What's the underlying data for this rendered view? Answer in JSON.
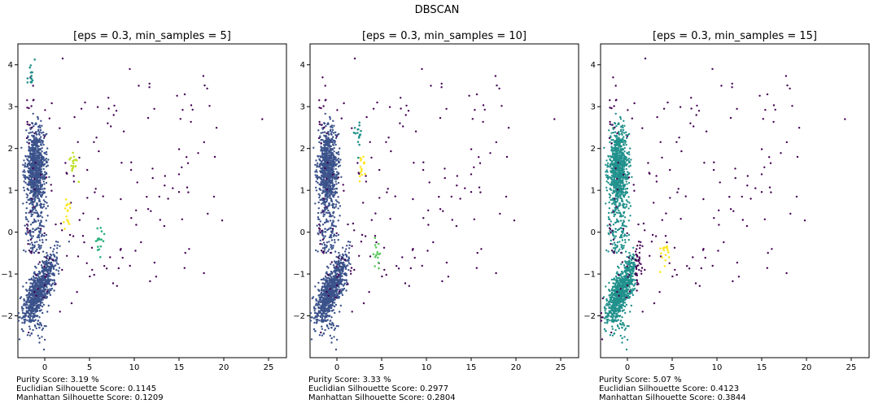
{
  "figure": {
    "suptitle": "DBSCAN"
  },
  "chart_data": [
    {
      "type": "scatter",
      "title": "[eps = 0.3, min_samples = 5]",
      "xlabel": "",
      "ylabel": "",
      "xlim": [
        -3,
        27
      ],
      "ylim": [
        -3.0,
        4.5
      ],
      "xticks": [
        0,
        5,
        10,
        15,
        20,
        25
      ],
      "yticks": [
        -2,
        -1,
        0,
        1,
        2,
        3,
        4
      ],
      "grid": false,
      "scores": [
        "Purity Score: 3.19 %",
        "Euclidian Silhouette Score: 0.1145",
        "Manhattan Silhouette Score: 0.1209"
      ],
      "clusters": [
        {
          "label": "noise",
          "color": "#440154",
          "shape": "scattered"
        },
        {
          "label": "main",
          "color": "#3b528b",
          "shape": "upper_lower_blobs"
        },
        {
          "label": "small-a",
          "color": "#21918c",
          "shape": "small",
          "center": [
            -1.5,
            3.7
          ]
        },
        {
          "label": "small-b",
          "color": "#2ab07f",
          "shape": "small",
          "center": [
            6.2,
            -0.3
          ]
        },
        {
          "label": "small-c",
          "color": "#bddf26",
          "shape": "small",
          "center": [
            3.2,
            1.6
          ]
        },
        {
          "label": "small-d",
          "color": "#fde725",
          "shape": "small",
          "center": [
            2.6,
            0.5
          ]
        }
      ]
    },
    {
      "type": "scatter",
      "title": "[eps = 0.3, min_samples = 10]",
      "xlabel": "",
      "ylabel": "",
      "xlim": [
        -3,
        27
      ],
      "ylim": [
        -3.0,
        4.5
      ],
      "xticks": [
        0,
        5,
        10,
        15,
        20,
        25
      ],
      "yticks": [
        -2,
        -1,
        0,
        1,
        2,
        3,
        4
      ],
      "grid": false,
      "scores": [
        "Purity Score: 3.33 %",
        "Euclidian Silhouette Score: 0.2977",
        "Manhattan Silhouette Score: 0.2804"
      ],
      "clusters": [
        {
          "label": "noise",
          "color": "#440154",
          "shape": "scattered"
        },
        {
          "label": "main",
          "color": "#3b528b",
          "shape": "upper_lower_blobs"
        },
        {
          "label": "small-a",
          "color": "#21918c",
          "shape": "small",
          "center": [
            2.5,
            2.3
          ]
        },
        {
          "label": "small-b",
          "color": "#5ec962",
          "shape": "small",
          "center": [
            4.5,
            -0.5
          ]
        },
        {
          "label": "small-c",
          "color": "#fde725",
          "shape": "small",
          "center": [
            2.8,
            1.5
          ]
        }
      ]
    },
    {
      "type": "scatter",
      "title": "[eps = 0.3, min_samples = 15]",
      "xlabel": "",
      "ylabel": "",
      "xlim": [
        -3,
        27
      ],
      "ylim": [
        -3.0,
        4.5
      ],
      "xticks": [
        0,
        5,
        10,
        15,
        20,
        25
      ],
      "yticks": [
        -2,
        -1,
        0,
        1,
        2,
        3,
        4
      ],
      "grid": false,
      "scores": [
        "Purity Score: 5.07 %",
        "Euclidian Silhouette Score: 0.4123",
        "Manhattan Silhouette Score: 0.3844"
      ],
      "clusters": [
        {
          "label": "noise",
          "color": "#440154",
          "shape": "scattered"
        },
        {
          "label": "main",
          "color": "#21918c",
          "shape": "upper_lower_blobs"
        },
        {
          "label": "small-a",
          "color": "#fde725",
          "shape": "small",
          "center": [
            4.2,
            -0.55
          ]
        }
      ]
    }
  ]
}
